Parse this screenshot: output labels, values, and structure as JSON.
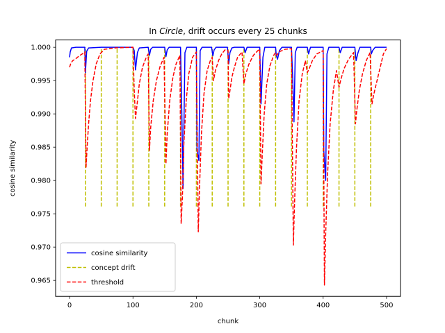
{
  "chart_data": {
    "type": "line",
    "title_prefix": "In ",
    "title_emph": "Circle",
    "title_suffix": ", drift occurs every 25 chunks",
    "xlabel": "chunk",
    "ylabel": "cosine similarity",
    "xlim": [
      -22,
      522
    ],
    "ylim": [
      0.9626,
      1.0011
    ],
    "x_ticks": [
      0,
      100,
      200,
      300,
      400,
      500
    ],
    "y_ticks": [
      0.965,
      0.97,
      0.975,
      0.98,
      0.985,
      0.99,
      0.995,
      1.0
    ],
    "y_tick_labels": [
      "0.965",
      "0.970",
      "0.975",
      "0.980",
      "0.985",
      "0.990",
      "0.995",
      "1.000"
    ],
    "legend_position": "lower left",
    "series": [
      {
        "name": "cosine similarity",
        "color": "#0000ff",
        "style": "solid",
        "points": [
          [
            0,
            0.9985
          ],
          [
            1,
            0.9993
          ],
          [
            3,
            0.9999
          ],
          [
            10,
            1.0
          ],
          [
            24,
            1.0
          ],
          [
            25,
            0.9962
          ],
          [
            27,
            0.9994
          ],
          [
            30,
            0.9999
          ],
          [
            50,
            1.0
          ],
          [
            75,
            1.0
          ],
          [
            100,
            1.0
          ],
          [
            102,
            0.9995
          ],
          [
            104,
            0.9966
          ],
          [
            107,
            0.9992
          ],
          [
            110,
            0.9999
          ],
          [
            124,
            1.0
          ],
          [
            126,
            0.9988
          ],
          [
            128,
            0.9997
          ],
          [
            131,
            1.0
          ],
          [
            150,
            1.0
          ],
          [
            152,
            0.9986
          ],
          [
            154,
            0.9996
          ],
          [
            157,
            1.0
          ],
          [
            175,
            1.0
          ],
          [
            177,
            0.9905
          ],
          [
            179,
            0.9788
          ],
          [
            182,
            0.9992
          ],
          [
            185,
            1.0
          ],
          [
            200,
            1.0
          ],
          [
            201,
            0.9845
          ],
          [
            204,
            0.983
          ],
          [
            206,
            0.9995
          ],
          [
            209,
            1.0
          ],
          [
            224,
            1.0
          ],
          [
            226,
            0.9987
          ],
          [
            228,
            0.9996
          ],
          [
            231,
            1.0
          ],
          [
            249,
            1.0
          ],
          [
            251,
            0.9975
          ],
          [
            253,
            0.9992
          ],
          [
            256,
            0.9999
          ],
          [
            260,
            1.0
          ],
          [
            275,
            1.0
          ],
          [
            277,
            0.9992
          ],
          [
            280,
            1.0
          ],
          [
            300,
            1.0
          ],
          [
            302,
            0.9915
          ],
          [
            305,
            0.9985
          ],
          [
            308,
            1.0
          ],
          [
            325,
            1.0
          ],
          [
            326,
            0.9988
          ],
          [
            328,
            0.9982
          ],
          [
            331,
            0.9995
          ],
          [
            335,
            1.0
          ],
          [
            350,
            1.0
          ],
          [
            352,
            0.9955
          ],
          [
            354,
            0.9888
          ],
          [
            356,
            0.9992
          ],
          [
            359,
            1.0
          ],
          [
            375,
            1.0
          ],
          [
            377,
            0.999
          ],
          [
            380,
            1.0
          ],
          [
            400,
            1.0
          ],
          [
            401,
            0.9845
          ],
          [
            404,
            0.98
          ],
          [
            406,
            0.999
          ],
          [
            409,
            1.0
          ],
          [
            425,
            1.0
          ],
          [
            427,
            0.9992
          ],
          [
            430,
            1.0
          ],
          [
            450,
            1.0
          ],
          [
            452,
            0.998
          ],
          [
            455,
            0.9992
          ],
          [
            458,
            1.0
          ],
          [
            475,
            1.0
          ],
          [
            476,
            0.999
          ],
          [
            478,
            0.9995
          ],
          [
            482,
            1.0
          ],
          [
            500,
            1.0
          ]
        ]
      },
      {
        "name": "threshold",
        "color": "#ff0000",
        "style": "dashed",
        "points": [
          [
            0,
            0.997
          ],
          [
            2,
            0.9976
          ],
          [
            5,
            0.998
          ],
          [
            10,
            0.9983
          ],
          [
            15,
            0.9987
          ],
          [
            20,
            0.999
          ],
          [
            24,
            0.9993
          ],
          [
            26,
            0.982
          ],
          [
            28,
            0.9855
          ],
          [
            30,
            0.9885
          ],
          [
            33,
            0.992
          ],
          [
            37,
            0.995
          ],
          [
            42,
            0.9975
          ],
          [
            48,
            0.999
          ],
          [
            55,
            0.9997
          ],
          [
            70,
            0.9999
          ],
          [
            100,
            1.0
          ],
          [
            102,
            0.9935
          ],
          [
            104,
            0.9893
          ],
          [
            106,
            0.991
          ],
          [
            110,
            0.9945
          ],
          [
            115,
            0.997
          ],
          [
            121,
            0.9985
          ],
          [
            124,
            0.999
          ],
          [
            126,
            0.9845
          ],
          [
            128,
            0.988
          ],
          [
            132,
            0.992
          ],
          [
            137,
            0.995
          ],
          [
            143,
            0.9972
          ],
          [
            149,
            0.9985
          ],
          [
            152,
            0.9825
          ],
          [
            154,
            0.987
          ],
          [
            158,
            0.992
          ],
          [
            163,
            0.9955
          ],
          [
            168,
            0.9975
          ],
          [
            174,
            0.9988
          ],
          [
            176,
            0.9735
          ],
          [
            178,
            0.9775
          ],
          [
            180,
            0.985
          ],
          [
            184,
            0.992
          ],
          [
            188,
            0.996
          ],
          [
            194,
            0.9985
          ],
          [
            200,
            0.9993
          ],
          [
            203,
            0.9723
          ],
          [
            205,
            0.979
          ],
          [
            208,
            0.987
          ],
          [
            212,
            0.993
          ],
          [
            217,
            0.9965
          ],
          [
            222,
            0.998
          ],
          [
            225,
            0.9985
          ],
          [
            227,
            0.995
          ],
          [
            230,
            0.9965
          ],
          [
            235,
            0.998
          ],
          [
            240,
            0.999
          ],
          [
            245,
            0.9996
          ],
          [
            250,
            0.9995
          ],
          [
            251,
            0.9923
          ],
          [
            253,
            0.9935
          ],
          [
            256,
            0.9955
          ],
          [
            260,
            0.997
          ],
          [
            265,
            0.9985
          ],
          [
            272,
            0.9993
          ],
          [
            275,
            0.9945
          ],
          [
            278,
            0.996
          ],
          [
            283,
            0.9975
          ],
          [
            290,
            0.9988
          ],
          [
            297,
            0.9995
          ],
          [
            300,
            0.9997
          ],
          [
            302,
            0.9795
          ],
          [
            304,
            0.984
          ],
          [
            307,
            0.99
          ],
          [
            311,
            0.9945
          ],
          [
            316,
            0.9972
          ],
          [
            322,
            0.9988
          ],
          [
            325,
            0.9992
          ],
          [
            327,
            0.9988
          ],
          [
            330,
            0.9993
          ],
          [
            340,
            0.9997
          ],
          [
            350,
            0.9998
          ],
          [
            353,
            0.9703
          ],
          [
            355,
            0.977
          ],
          [
            358,
            0.985
          ],
          [
            362,
            0.992
          ],
          [
            367,
            0.996
          ],
          [
            372,
            0.998
          ],
          [
            375,
            0.9962
          ],
          [
            378,
            0.9968
          ],
          [
            383,
            0.998
          ],
          [
            390,
            0.999
          ],
          [
            400,
            0.9995
          ],
          [
            402,
            0.9643
          ],
          [
            404,
            0.972
          ],
          [
            407,
            0.981
          ],
          [
            411,
            0.9885
          ],
          [
            416,
            0.9935
          ],
          [
            421,
            0.9965
          ],
          [
            425,
            0.994
          ],
          [
            428,
            0.9952
          ],
          [
            433,
            0.9968
          ],
          [
            440,
            0.9982
          ],
          [
            448,
            0.9992
          ],
          [
            451,
            0.9885
          ],
          [
            453,
            0.9905
          ],
          [
            457,
            0.9935
          ],
          [
            462,
            0.996
          ],
          [
            468,
            0.998
          ],
          [
            474,
            0.9992
          ],
          [
            477,
            0.9915
          ],
          [
            480,
            0.993
          ],
          [
            485,
            0.995
          ],
          [
            490,
            0.997
          ],
          [
            495,
            0.999
          ],
          [
            500,
            0.9998
          ]
        ]
      }
    ],
    "drift": {
      "name": "concept drift",
      "color": "#bfbf00",
      "style": "dashed",
      "x": [
        25,
        50,
        75,
        100,
        125,
        150,
        175,
        200,
        225,
        250,
        275,
        300,
        325,
        350,
        375,
        400,
        425,
        450,
        475
      ],
      "y_from": 0.9761,
      "y_to": 1.0
    }
  }
}
